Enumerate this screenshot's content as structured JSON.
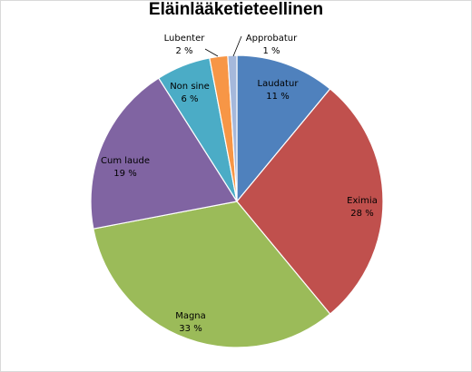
{
  "chart_data": {
    "type": "pie",
    "title": "Eläinlääketieteellinen",
    "slices": [
      {
        "name": "Laudatur",
        "value": 11,
        "label": "11 %",
        "color": "#4f81bd"
      },
      {
        "name": "Eximia",
        "value": 28,
        "label": "28 %",
        "color": "#c0504d"
      },
      {
        "name": "Magna",
        "value": 33,
        "label": "33 %",
        "color": "#9bbb59"
      },
      {
        "name": "Cum laude",
        "value": 19,
        "label": "19 %",
        "color": "#8064a2"
      },
      {
        "name": "Non sine",
        "value": 6,
        "label": "6 %",
        "color": "#4bacc6"
      },
      {
        "name": "Lubenter",
        "value": 2,
        "label": "2 %",
        "color": "#f79646"
      },
      {
        "name": "Approbatur",
        "value": 1,
        "label": "1 %",
        "color": "#a5b8db"
      }
    ],
    "legend": "none",
    "data_labels": "category name and percentage"
  }
}
